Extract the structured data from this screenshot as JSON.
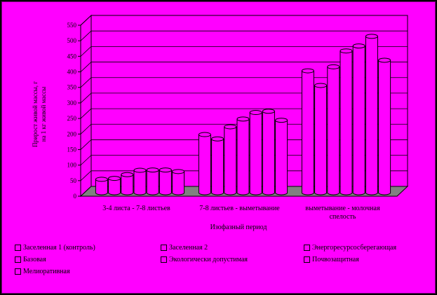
{
  "chart_data": {
    "type": "bar",
    "title": "",
    "ylabel_lines": [
      "Прирост живой массы, г",
      "на 1 кг живой массы"
    ],
    "xlabel": "Изофазный период",
    "ylim": [
      0,
      550
    ],
    "yticks": [
      "0",
      "50",
      "100",
      "150",
      "200",
      "250",
      "300",
      "350",
      "400",
      "450",
      "500",
      "550"
    ],
    "grid": true,
    "legend_position": "bottom",
    "categories": [
      [
        "3-4 листа - 7-8 листьев"
      ],
      [
        "7-8 листьев - выметывание"
      ],
      [
        "выметывание - молочная",
        "спелость"
      ]
    ],
    "series": [
      {
        "name": "Заселенная 1 (контроль)",
        "values": [
          43,
          187,
          392
        ]
      },
      {
        "name": "Заселенная 2",
        "values": [
          46,
          173,
          345
        ]
      },
      {
        "name": "Энергоресурсосберегающая",
        "values": [
          58,
          212,
          405
        ]
      },
      {
        "name": "Базовая",
        "values": [
          72,
          237,
          456
        ]
      },
      {
        "name": "Экологически допустимая",
        "values": [
          73,
          258,
          472
        ]
      },
      {
        "name": "Почвозащитная",
        "values": [
          73,
          262,
          503
        ]
      },
      {
        "name": "Мелиоративная",
        "values": [
          68,
          233,
          426
        ]
      }
    ],
    "colors": {
      "background": "#ff00ff",
      "frame": "#000000",
      "floor": "#808080",
      "bar": "#ff00ff"
    }
  }
}
